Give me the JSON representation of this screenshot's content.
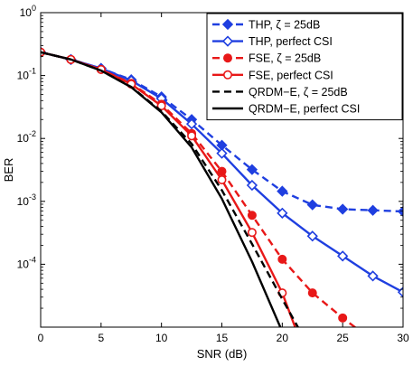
{
  "chart_data": {
    "type": "line",
    "title": "",
    "xlabel": "SNR (dB)",
    "ylabel": "BER",
    "xlim": [
      0,
      30
    ],
    "ylim": [
      1e-05,
      1
    ],
    "yscale": "log",
    "grid": false,
    "legend_position": "top-right",
    "xticks": [
      0,
      5,
      10,
      15,
      20,
      25,
      30
    ],
    "yticks": [
      {
        "value": 1,
        "exp": "0"
      },
      {
        "value": 0.1,
        "exp": "-1"
      },
      {
        "value": 0.01,
        "exp": "-2"
      },
      {
        "value": 0.001,
        "exp": "-3"
      },
      {
        "value": 0.0001,
        "exp": "-4"
      }
    ],
    "ytick_base": "10",
    "series": [
      {
        "name": "THP, ζ = 25dB",
        "color": "#1f3fe0",
        "dash": "dashed",
        "marker": "filled-diamond",
        "x": [
          0,
          2.5,
          5,
          7.5,
          10,
          12.5,
          15,
          17.5,
          20,
          22.5,
          25,
          27.5,
          30
        ],
        "y": [
          0.235,
          0.18,
          0.13,
          0.086,
          0.046,
          0.02,
          0.0078,
          0.0032,
          0.00145,
          0.00088,
          0.00075,
          0.00072,
          0.00069
        ]
      },
      {
        "name": "THP, perfect CSI",
        "color": "#1f3fe0",
        "dash": "solid",
        "marker": "open-diamond",
        "x": [
          0,
          2.5,
          5,
          7.5,
          10,
          12.5,
          15,
          17.5,
          20,
          22.5,
          25,
          27.5,
          30
        ],
        "y": [
          0.235,
          0.18,
          0.13,
          0.083,
          0.043,
          0.017,
          0.0058,
          0.0018,
          0.00065,
          0.00028,
          0.000135,
          6.5e-05,
          3.6e-05
        ]
      },
      {
        "name": "FSE, ζ = 25dB",
        "color": "#e81818",
        "dash": "dashed",
        "marker": "filled-circle",
        "x": [
          0,
          2.5,
          5,
          7.5,
          10,
          12.5,
          15,
          17.5,
          20,
          22.5,
          25,
          26.5
        ],
        "y": [
          0.235,
          0.18,
          0.125,
          0.075,
          0.035,
          0.012,
          0.003,
          0.0006,
          0.00012,
          3.5e-05,
          1.4e-05,
          8.5e-06
        ]
      },
      {
        "name": "FSE, perfect CSI",
        "color": "#e81818",
        "dash": "solid",
        "marker": "open-circle",
        "x": [
          0,
          2.5,
          5,
          7.5,
          10,
          12.5,
          15,
          17.5,
          20,
          21.2
        ],
        "y": [
          0.235,
          0.18,
          0.125,
          0.073,
          0.033,
          0.011,
          0.0022,
          0.00032,
          3.5e-05,
          8.5e-06
        ]
      },
      {
        "name": "QRDM−E, ζ = 25dB",
        "color": "#000000",
        "dash": "dashed",
        "marker": "none",
        "x": [
          0,
          2.5,
          5,
          7.5,
          10,
          12.5,
          15,
          17.5,
          20,
          21.5
        ],
        "y": [
          0.235,
          0.18,
          0.12,
          0.066,
          0.027,
          0.0082,
          0.0015,
          0.00021,
          2.8e-05,
          8.5e-06
        ]
      },
      {
        "name": "QRDM−E, perfect CSI",
        "color": "#000000",
        "dash": "solid",
        "marker": "none",
        "x": [
          0,
          2.5,
          5,
          7.5,
          10,
          12.5,
          15,
          17.5,
          20
        ],
        "y": [
          0.235,
          0.18,
          0.12,
          0.065,
          0.026,
          0.0072,
          0.0011,
          0.00011,
          8.5e-06
        ]
      }
    ]
  }
}
